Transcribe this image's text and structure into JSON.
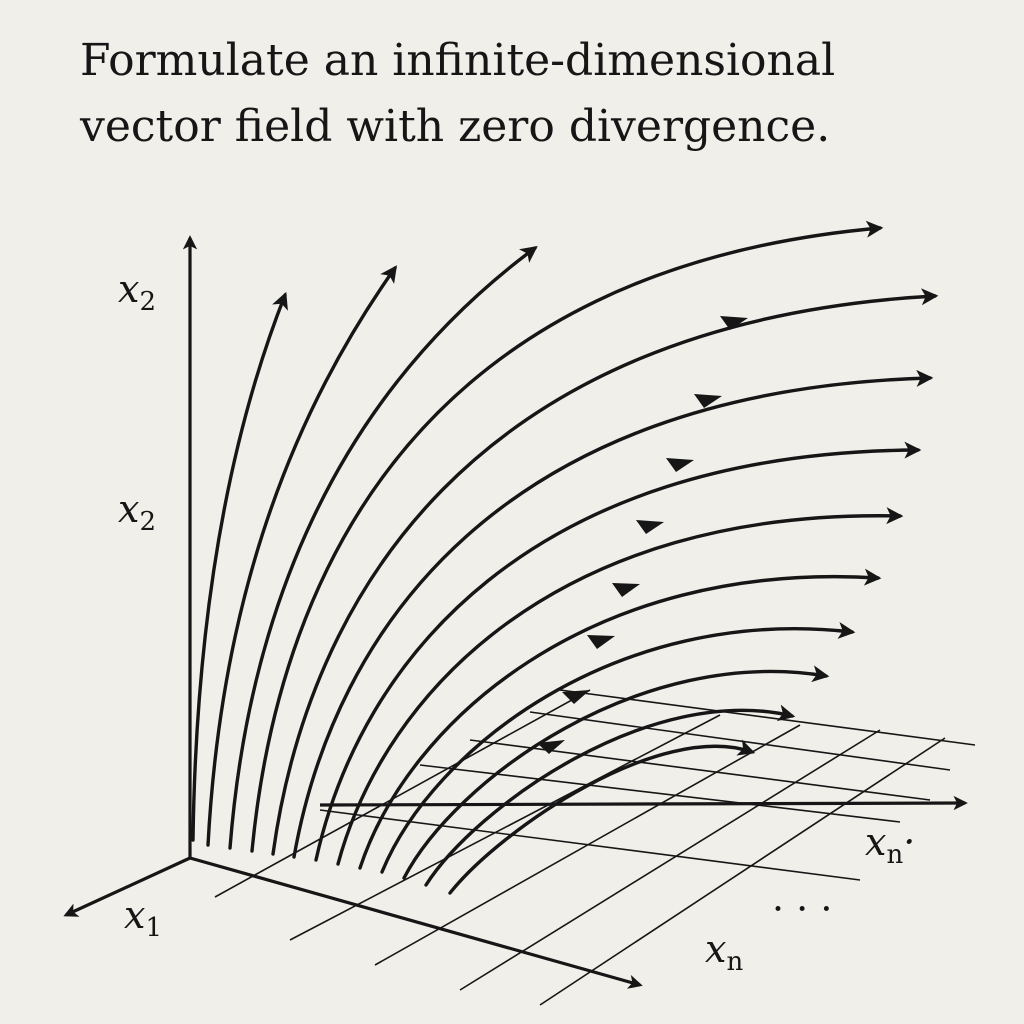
{
  "title_line1": "Formulate an infinite-dimensional",
  "title_line2": "vector field with zero divergence.",
  "labels": {
    "x2_top": {
      "base": "x",
      "sub": "2"
    },
    "x2_mid": {
      "base": "x",
      "sub": "2"
    },
    "x1": {
      "base": "x",
      "sub": "1"
    },
    "xn_right": {
      "base": "x",
      "sub": "n",
      "trail": "·"
    },
    "xn_bottom": {
      "base": "x",
      "sub": "n"
    },
    "ellipsis": "· · ·"
  },
  "colors": {
    "ink": "#161616",
    "background": "#f1efe9"
  }
}
